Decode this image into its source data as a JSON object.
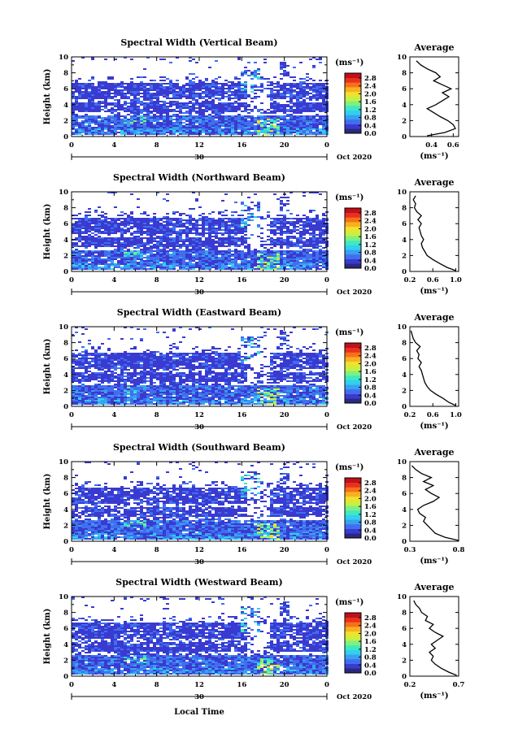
{
  "page": {
    "xlabel": "Local Time"
  },
  "colorbar": {
    "unit_label": "(ms⁻¹)",
    "ticks": [
      "0.0",
      "0.4",
      "0.8",
      "1.2",
      "1.6",
      "2.0",
      "2.4",
      "2.8"
    ],
    "colors": [
      "#2a2a7a",
      "#3a3ad0",
      "#3f6ff0",
      "#3aa0f0",
      "#30d0f0",
      "#40e8c0",
      "#80f080",
      "#c8f040",
      "#f0e030",
      "#f8b020",
      "#f87018",
      "#e83020",
      "#c01018"
    ]
  },
  "chart_data": [
    {
      "type": "heatmap",
      "title": "Spectral Width (Vertical Beam)",
      "ylabel": "Height (km)",
      "x_ticks": [
        "0",
        "4",
        "8",
        "12",
        "16",
        "20",
        "0"
      ],
      "y_ticks": [
        "0",
        "2",
        "4",
        "6",
        "8",
        "10"
      ],
      "xlim": [
        0,
        24
      ],
      "ylim": [
        0,
        10
      ],
      "date_label": "30",
      "date_right": "Oct 2020",
      "profile": {
        "title": "Average",
        "x_ticks": [
          "0.4",
          "0.6"
        ],
        "xlim": [
          0.2,
          0.65
        ],
        "xlabel": "(ms⁻¹)",
        "y_ticks": [
          "0",
          "2",
          "4",
          "6",
          "8",
          "10"
        ],
        "points": [
          [
            0.36,
            0.1
          ],
          [
            0.52,
            0.5
          ],
          [
            0.62,
            1.0
          ],
          [
            0.6,
            1.5
          ],
          [
            0.55,
            2.0
          ],
          [
            0.48,
            2.5
          ],
          [
            0.42,
            3.0
          ],
          [
            0.36,
            3.5
          ],
          [
            0.44,
            4.0
          ],
          [
            0.5,
            4.5
          ],
          [
            0.56,
            5.0
          ],
          [
            0.5,
            5.5
          ],
          [
            0.58,
            6.0
          ],
          [
            0.5,
            6.5
          ],
          [
            0.42,
            7.0
          ],
          [
            0.48,
            7.5
          ],
          [
            0.44,
            8.0
          ],
          [
            0.36,
            8.5
          ],
          [
            0.3,
            9.0
          ],
          [
            0.26,
            9.5
          ]
        ]
      }
    },
    {
      "type": "heatmap",
      "title": "Spectral Width (Northward Beam)",
      "ylabel": "Height (km)",
      "x_ticks": [
        "0",
        "4",
        "8",
        "12",
        "16",
        "20",
        "0"
      ],
      "y_ticks": [
        "0",
        "2",
        "4",
        "6",
        "8",
        "10"
      ],
      "xlim": [
        0,
        24
      ],
      "ylim": [
        0,
        10
      ],
      "date_label": "30",
      "date_right": "Oct 2020",
      "profile": {
        "title": "Average",
        "x_ticks": [
          "0.2",
          "0.6",
          "1.0"
        ],
        "xlim": [
          0.2,
          1.05
        ],
        "xlabel": "(ms⁻¹)",
        "y_ticks": [
          "0",
          "2",
          "4",
          "6",
          "8",
          "10"
        ],
        "points": [
          [
            1.0,
            0.1
          ],
          [
            0.85,
            0.5
          ],
          [
            0.72,
            1.0
          ],
          [
            0.6,
            1.5
          ],
          [
            0.5,
            2.0
          ],
          [
            0.46,
            2.5
          ],
          [
            0.42,
            3.0
          ],
          [
            0.4,
            3.5
          ],
          [
            0.44,
            4.0
          ],
          [
            0.4,
            4.5
          ],
          [
            0.38,
            5.0
          ],
          [
            0.36,
            5.5
          ],
          [
            0.4,
            6.0
          ],
          [
            0.34,
            6.5
          ],
          [
            0.4,
            7.0
          ],
          [
            0.32,
            7.5
          ],
          [
            0.28,
            8.0
          ],
          [
            0.3,
            8.5
          ],
          [
            0.26,
            9.0
          ],
          [
            0.3,
            9.5
          ]
        ]
      }
    },
    {
      "type": "heatmap",
      "title": "Spectral Width (Eastward Beam)",
      "ylabel": "Height (km)",
      "x_ticks": [
        "0",
        "4",
        "8",
        "12",
        "16",
        "20",
        "0"
      ],
      "y_ticks": [
        "0",
        "2",
        "4",
        "6",
        "8",
        "10"
      ],
      "xlim": [
        0,
        24
      ],
      "ylim": [
        0,
        10
      ],
      "date_label": "30",
      "date_right": "Oct 2020",
      "profile": {
        "title": "Average",
        "x_ticks": [
          "0.2",
          "0.6",
          "1.0"
        ],
        "xlim": [
          0.2,
          1.05
        ],
        "xlabel": "(ms⁻¹)",
        "y_ticks": [
          "0",
          "2",
          "4",
          "6",
          "8",
          "10"
        ],
        "points": [
          [
            1.0,
            0.1
          ],
          [
            0.88,
            0.5
          ],
          [
            0.78,
            1.0
          ],
          [
            0.66,
            1.5
          ],
          [
            0.56,
            2.0
          ],
          [
            0.5,
            2.5
          ],
          [
            0.46,
            3.0
          ],
          [
            0.44,
            3.5
          ],
          [
            0.42,
            4.0
          ],
          [
            0.4,
            4.5
          ],
          [
            0.36,
            5.0
          ],
          [
            0.4,
            5.5
          ],
          [
            0.34,
            6.0
          ],
          [
            0.36,
            6.5
          ],
          [
            0.32,
            7.0
          ],
          [
            0.38,
            7.5
          ],
          [
            0.3,
            8.0
          ],
          [
            0.26,
            8.5
          ],
          [
            0.24,
            9.0
          ],
          [
            0.22,
            9.5
          ]
        ]
      }
    },
    {
      "type": "heatmap",
      "title": "Spectral Width (Southward Beam)",
      "ylabel": "Height (km)",
      "x_ticks": [
        "0",
        "4",
        "8",
        "12",
        "16",
        "20",
        "0"
      ],
      "y_ticks": [
        "0",
        "2",
        "4",
        "6",
        "8",
        "10"
      ],
      "xlim": [
        0,
        24
      ],
      "ylim": [
        0,
        10
      ],
      "date_label": "30",
      "date_right": "Oct 2020",
      "profile": {
        "title": "Average",
        "x_ticks": [
          "0.3",
          "0.8"
        ],
        "xlim": [
          0.3,
          0.8
        ],
        "xlabel": "(ms⁻¹)",
        "y_ticks": [
          "0",
          "2",
          "4",
          "6",
          "8",
          "10"
        ],
        "points": [
          [
            0.8,
            0.1
          ],
          [
            0.66,
            0.5
          ],
          [
            0.56,
            1.0
          ],
          [
            0.52,
            1.5
          ],
          [
            0.48,
            2.0
          ],
          [
            0.44,
            2.5
          ],
          [
            0.46,
            3.0
          ],
          [
            0.4,
            3.5
          ],
          [
            0.38,
            4.0
          ],
          [
            0.44,
            4.5
          ],
          [
            0.54,
            5.0
          ],
          [
            0.6,
            5.5
          ],
          [
            0.52,
            6.0
          ],
          [
            0.46,
            6.5
          ],
          [
            0.54,
            7.0
          ],
          [
            0.44,
            7.5
          ],
          [
            0.52,
            8.0
          ],
          [
            0.42,
            8.5
          ],
          [
            0.36,
            9.0
          ],
          [
            0.32,
            9.5
          ]
        ]
      }
    },
    {
      "type": "heatmap",
      "title": "Spectral Width (Westward Beam)",
      "ylabel": "Height (km)",
      "x_ticks": [
        "0",
        "4",
        "8",
        "12",
        "16",
        "20",
        "0"
      ],
      "y_ticks": [
        "0",
        "2",
        "4",
        "6",
        "8",
        "10"
      ],
      "xlim": [
        0,
        24
      ],
      "ylim": [
        0,
        10
      ],
      "date_label": "30",
      "date_right": "Oct 2020",
      "profile": {
        "title": "Average",
        "x_ticks": [
          "0.2",
          "0.7"
        ],
        "xlim": [
          0.2,
          0.7
        ],
        "xlabel": "(ms⁻¹)",
        "y_ticks": [
          "0",
          "2",
          "4",
          "6",
          "8",
          "10"
        ],
        "points": [
          [
            0.68,
            0.1
          ],
          [
            0.6,
            0.5
          ],
          [
            0.52,
            1.0
          ],
          [
            0.46,
            1.5
          ],
          [
            0.42,
            2.0
          ],
          [
            0.44,
            2.5
          ],
          [
            0.4,
            3.0
          ],
          [
            0.46,
            3.5
          ],
          [
            0.42,
            4.0
          ],
          [
            0.48,
            4.5
          ],
          [
            0.54,
            5.0
          ],
          [
            0.46,
            5.5
          ],
          [
            0.4,
            6.0
          ],
          [
            0.44,
            6.5
          ],
          [
            0.36,
            7.0
          ],
          [
            0.38,
            7.5
          ],
          [
            0.32,
            8.0
          ],
          [
            0.3,
            8.5
          ],
          [
            0.26,
            9.0
          ],
          [
            0.24,
            9.5
          ]
        ]
      }
    }
  ]
}
